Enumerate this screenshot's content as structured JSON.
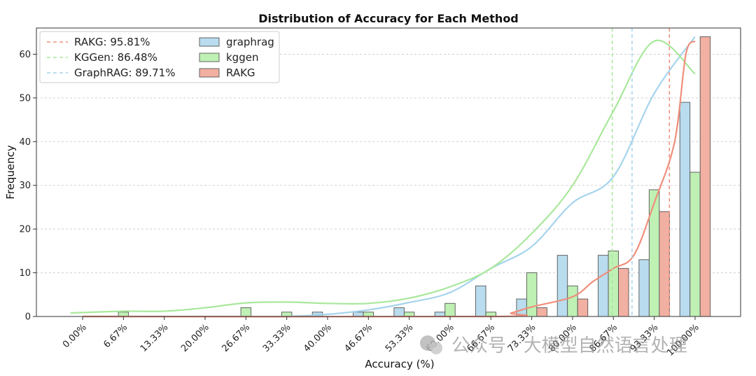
{
  "chart_data": {
    "type": "bar",
    "title": "Distribution of Accuracy for Each Method",
    "xlabel": "Accuracy (%)",
    "ylabel": "Frequency",
    "ylim": [
      0,
      66
    ],
    "yticks": [
      0,
      10,
      20,
      30,
      40,
      50,
      60
    ],
    "grid": "horizontal dashed",
    "legend_position": "top-left",
    "categories": [
      "0.00%",
      "6.67%",
      "13.33%",
      "20.00%",
      "26.67%",
      "33.33%",
      "40.00%",
      "46.67%",
      "53.33%",
      "60.00%",
      "66.67%",
      "73.33%",
      "80.00%",
      "86.67%",
      "93.33%",
      "100.00%"
    ],
    "series": [
      {
        "name": "graphrag",
        "color": "#b9dcee",
        "values": [
          0,
          0,
          0,
          0,
          0,
          0,
          1,
          1,
          2,
          1,
          7,
          4,
          14,
          14,
          13,
          49
        ]
      },
      {
        "name": "kggen",
        "color": "#bff0b4",
        "values": [
          0,
          1,
          0,
          0,
          2,
          1,
          0,
          1,
          1,
          3,
          1,
          10,
          7,
          15,
          29,
          33
        ]
      },
      {
        "name": "RAKG",
        "color": "#f2b0a2",
        "values": [
          0,
          0,
          0,
          0,
          0,
          0,
          0,
          0,
          0,
          0,
          0,
          2,
          4,
          11,
          24,
          64
        ]
      }
    ],
    "kde_curves": [
      {
        "series": "graphrag",
        "color": "#a6d4ec",
        "x": [
          0,
          6.67,
          13.33,
          20,
          26.67,
          33.33,
          40,
          46.67,
          53.33,
          60,
          66.67,
          73.33,
          80,
          86.67,
          93.33,
          100
        ],
        "y": [
          0,
          0,
          0,
          0,
          0,
          0,
          0.5,
          1.5,
          3.2,
          5.5,
          11,
          16,
          26,
          32,
          51,
          64
        ]
      },
      {
        "series": "kggen",
        "color": "#a9e89c",
        "x": [
          -2,
          6.67,
          13.33,
          20,
          26.67,
          33.33,
          40,
          46.67,
          53.33,
          60,
          66.67,
          73.33,
          80,
          86.67,
          93.33,
          100
        ],
        "y": [
          0.8,
          1.2,
          1.2,
          2,
          3.1,
          3.3,
          3,
          3,
          4.2,
          6.8,
          11,
          19,
          30,
          47,
          63,
          55.5
        ]
      },
      {
        "series": "RAKG",
        "color": "#ef8f7c",
        "x": [
          0,
          66.67,
          70,
          73.33,
          80,
          83.33,
          86.67,
          90,
          93.33,
          96.67,
          98.5,
          100
        ],
        "y": [
          0,
          0,
          0.8,
          2.2,
          4.5,
          8,
          11,
          14,
          26,
          40,
          60,
          63
        ]
      }
    ],
    "reference_lines": [
      {
        "label": "RAKG: 95.81%",
        "x": 95.81,
        "color": "#ef8f7c"
      },
      {
        "label": "KGGen: 86.48%",
        "x": 86.48,
        "color": "#a9e89c"
      },
      {
        "label": "GraphRAG: 89.71%",
        "x": 89.71,
        "color": "#a6d4ec"
      }
    ],
    "watermark": "公众号 · 大模型自然语言处理"
  }
}
